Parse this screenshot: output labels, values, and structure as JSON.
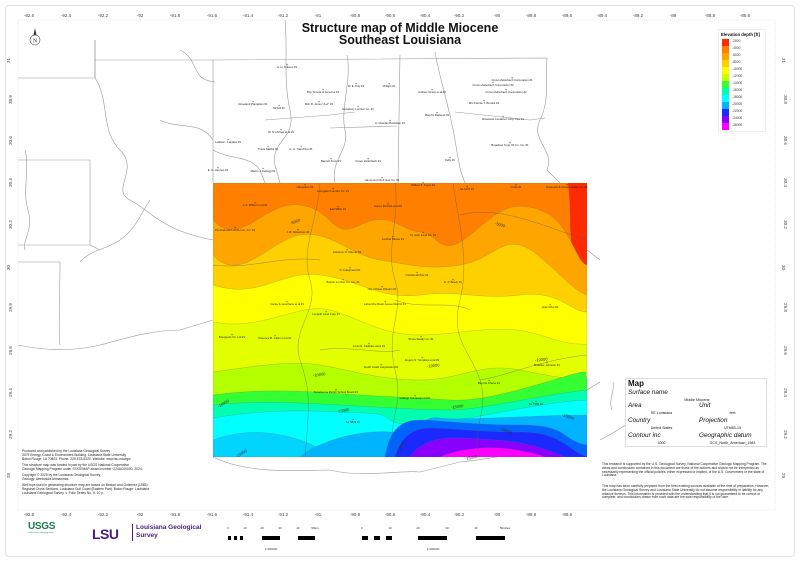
{
  "title": {
    "line1": "Structure map of Middle Miocene",
    "line2": "Southeast Louisiana"
  },
  "axes": {
    "top": [
      "-92.6",
      "-92.4",
      "-92.2",
      "-92",
      "-91.8",
      "-91.6",
      "-91.4",
      "-91.2",
      "-91",
      "-90.8",
      "-90.6",
      "-90.4",
      "-90.2",
      "-90",
      "-89.8",
      "-89.6",
      "-89.4",
      "-89.2",
      "-89",
      "-88.8",
      "-88.6"
    ],
    "left": [
      "31",
      "30.8",
      "30.6",
      "30.4",
      "30.2",
      "30",
      "29.8",
      "29.6",
      "29.4",
      "29.2",
      "29"
    ]
  },
  "legend": {
    "title": "Elevation depth [ft]",
    "items": [
      {
        "label": "-2000",
        "color": "#ff2a00"
      },
      {
        "label": "-4000",
        "color": "#ff7f00"
      },
      {
        "label": "-6000",
        "color": "#ffa500"
      },
      {
        "label": "-8000",
        "color": "#ffd000"
      },
      {
        "label": "-10000",
        "color": "#ffff00"
      },
      {
        "label": "-12000",
        "color": "#c8ff00"
      },
      {
        "label": "-14000",
        "color": "#33ff33"
      },
      {
        "label": "-16000",
        "color": "#00ffb0"
      },
      {
        "label": "-18000",
        "color": "#00ffff"
      },
      {
        "label": "-20000",
        "color": "#00b4ff"
      },
      {
        "label": "-22000",
        "color": "#1a2aff"
      },
      {
        "label": "-24000",
        "color": "#8a00ff"
      },
      {
        "label": "-26000",
        "color": "#ff00ff"
      }
    ]
  },
  "info": {
    "heading": "Map",
    "surface_label": "Surface name",
    "surface": "Middle Miocene",
    "area_label": "Area",
    "area": "SE Louisiana",
    "unit_label": "Unit",
    "unit": "feet",
    "country_label": "Country",
    "country": "United States",
    "projection_label": "Projection",
    "projection": "UTM83-15",
    "contour_label": "Contour inc",
    "contour": "1000",
    "datum_label": "Geographic datum",
    "datum": "GCS_North_American_1983"
  },
  "notes": {
    "left": [
      "Produced and published by the Louisiana Geological Survey",
      "3079 Energy, Coast & Environment Building, Louisiana State University",
      "Baton Rouge, LA 70803. Phone: 225-578-5320. Website: www.lsu.edu/lgs/",
      "This structure map was funded in part by the USGS National Cooperative",
      "Geologic Mapping Program under STATEMAP award number G24AC00000, 2024.",
      "Copyright © 2025 by the Louisiana Geological Survey",
      "Geology: Atrebotola Ahmanmas",
      "Well tops used in generating structure map are based on Bebout and Gutierrez (1983):",
      "Regional Cross Sections, Louisiana Gulf Coast (Eastern Part). Baton Rouge: Louisiana",
      "Louisiana Geological Survey. v. Folio Series No. 6, 10 p."
    ],
    "right1": "This research is supported by the U.S. Geological Survey, National Cooperative Geologic Mapping Program. The views and conclusions contained in this document are those of the authors and should not be interpreted as necessarily representing the official policies, either expressed or implied, of the U.S. Government or the state of Louisiana.",
    "right2": "This map has been carefully prepared from the best existing sources available at the time of preparation. However, the Louisiana Geological Survey and Louisiana State University do not assume responsibility or liability for any reliance thereon. This information is provided with the understanding that it is not guaranteed to be correct or complete, and conclusions drawn from such data are the sole responsibility of the user."
  },
  "logos": {
    "usgs": "USGS",
    "usgs_tag": "science for a changing world",
    "lsu": "LSU",
    "lgs1": "Louisiana Geological",
    "lgs2": "Survey"
  },
  "scale": {
    "km": [
      "0",
      "10",
      "20",
      "30",
      "40",
      "50km"
    ],
    "miles": [
      "0",
      "10",
      "20",
      "30",
      "40",
      "50miles"
    ],
    "ratio_km": "1:300000",
    "ratio_mi": "1:300000"
  },
  "contours": [
    "-5000",
    "-5000",
    "-10000",
    "-10000",
    "-10000",
    "-10000",
    "-15000",
    "-15000",
    "-15000",
    "-15000",
    "-20000",
    "-20000",
    "-25000"
  ],
  "wells": [
    "H. H. Tolusso #1",
    "Boy Scouts of America #1",
    "Bob R. Jones \"A-A\" #1",
    "W. E. Day #1",
    "Phillips #1",
    "Newsbury Lumber Co. #1",
    "Andrew Grace et al #1",
    "Crown Zellerbach Corporation #1",
    "Crown Zellerbach Corporation #3",
    "Crown Zellerbach Corporation #2",
    "Mrs Fannie T. Brooks #1",
    "Murphy Railroad #1",
    "Roseland Container Corp. Fee #1",
    "Roseland Plantation #1",
    "McGill #1",
    "A. Claudel Plantation #1",
    "W. N. McVea et al #1",
    "Leblanc - Laplace #1",
    "Travis Mathis #1",
    "G. A. Tranchina #1",
    "Barnett Fenn #1",
    "Crown Zellerbach #1",
    "Kelly #1",
    "E. G. Haynes #1",
    "Martin J. Kellogg #1",
    "Bogalusa Tung Oil Co. Inc. #1",
    "Hammond Oil & Gas Co. #1",
    "Hampston #1",
    "Livingston Lumber Co. #1",
    "William T. Joyce #1",
    "SL 1171 #1",
    "Curtis #1",
    "Poitevent & Favre Lumber Co. #1",
    "J. A. Wilbert et al #1",
    "Earl Miller #1",
    "James Rodrick et al #1",
    "Ponchatoula Lumber Co. Inc. #1",
    "J. B. Robertson #1",
    "Clarence O. Maurer #1",
    "Lutcher Moore #1",
    "St. John Land Co. #1",
    "P. Guiegmard #1",
    "Occidental Fee #1",
    "Boston Lumber Co. Inc. #1",
    "City of New Orleans #1",
    "E. P. Brady #1",
    "Lafourche Basin Levee District #1",
    "Alden Rus #1",
    "Leopold Land Corp #1",
    "Cocke & Gouchaux et al #1",
    "Bourgeois Co. Ltd #1",
    "Florence B. Callon et al #1",
    "Shore Realty Co. #1",
    "Louis E. Caillette Heirs #1",
    "Angelo S. Tompkins et al #1",
    "South Coast Corporation #1",
    "Bay De Chene #1",
    "Lafarge Company Ltd #1",
    "Terrebonne Parish School Board #1",
    "SL 5822 #1",
    "SL 7380 #1",
    "Brashier Johnson #1"
  ]
}
